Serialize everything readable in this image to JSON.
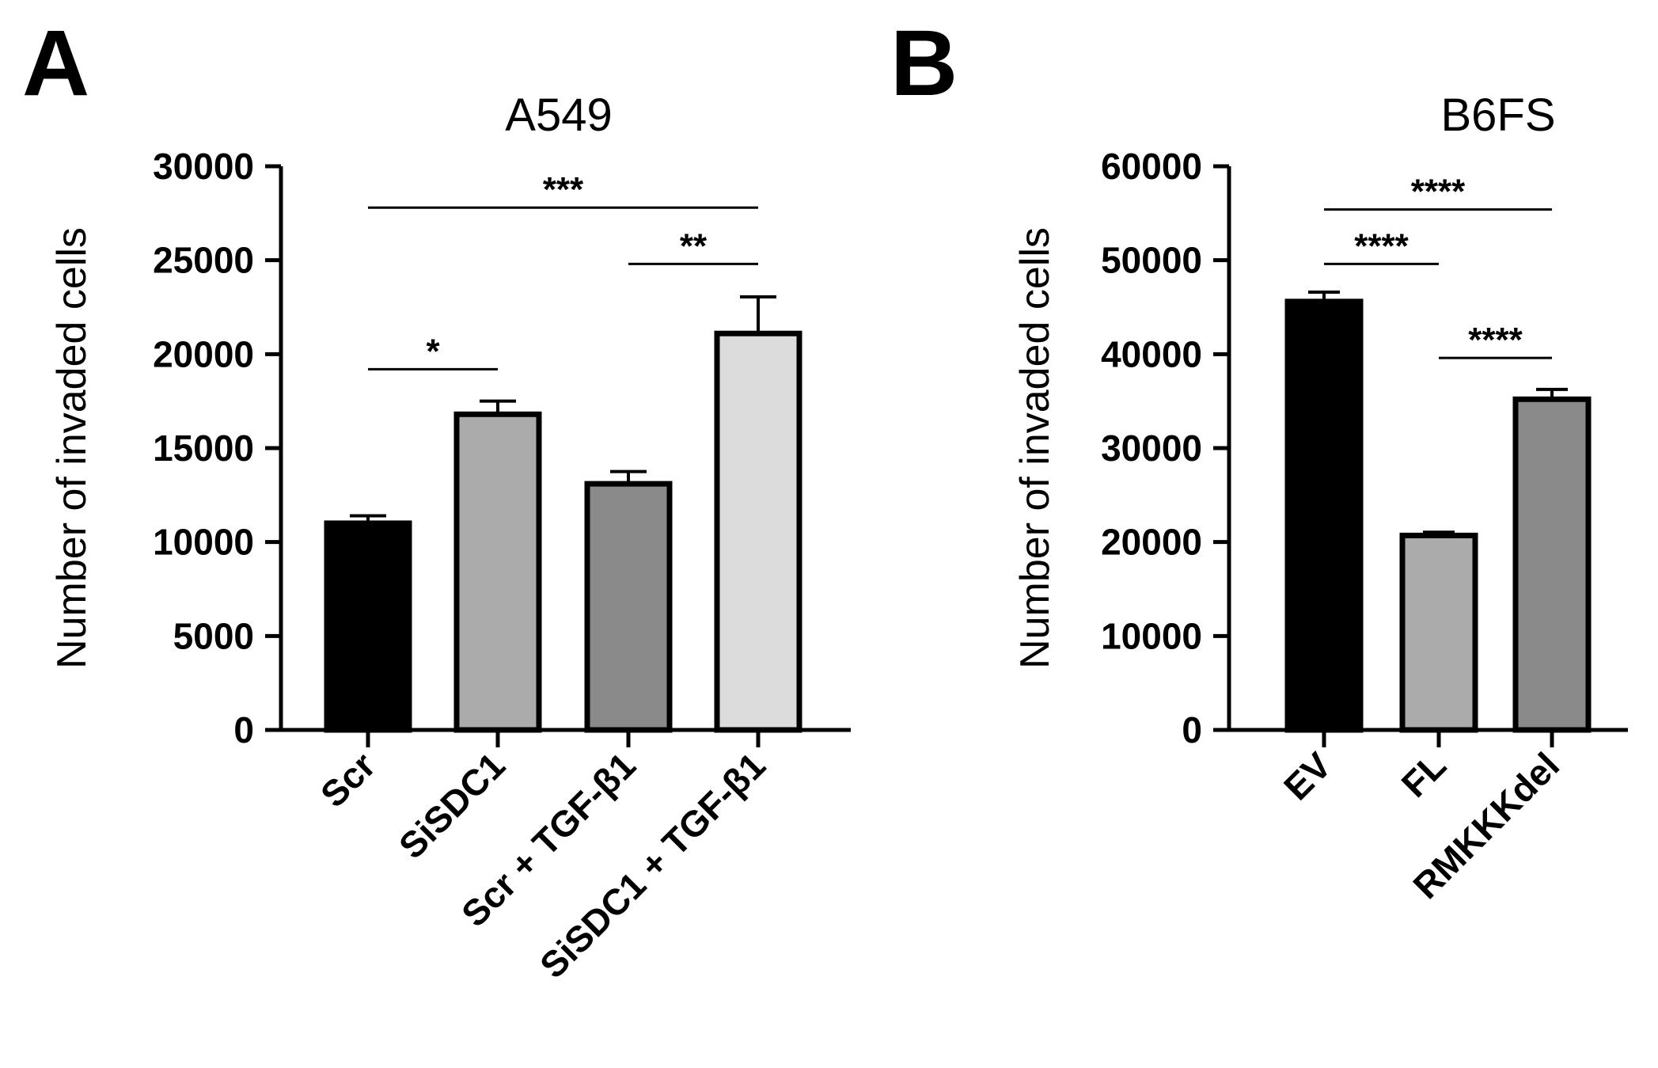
{
  "panels": [
    "A",
    "B"
  ],
  "chart_data": [
    {
      "panel": "A",
      "type": "bar",
      "title": "A549",
      "ylabel": "Number of invaded cells",
      "xlabel": "",
      "ylim": [
        0,
        30000
      ],
      "yticks": [
        0,
        5000,
        10000,
        15000,
        20000,
        25000,
        30000
      ],
      "categories": [
        "Scr",
        "SiSDC1",
        "Scr + TGF-β1",
        "SiSDC1 + TGF-β1"
      ],
      "values": [
        11000,
        16800,
        13100,
        21100
      ],
      "errors": [
        400,
        700,
        650,
        1950
      ],
      "bar_colors": [
        "#000000",
        "#ababab",
        "#8a8a8a",
        "#dcdcdc"
      ],
      "significance": [
        {
          "from": 0,
          "to": 1,
          "y": 19200,
          "label": "*"
        },
        {
          "from": 2,
          "to": 3,
          "y": 24800,
          "label": "**"
        },
        {
          "from": 0,
          "to": 3,
          "y": 27800,
          "label": "***"
        }
      ],
      "grid": false,
      "legend": "none"
    },
    {
      "panel": "B",
      "type": "bar",
      "title": "B6FS",
      "ylabel": "Number of invaded cells",
      "xlabel": "",
      "ylim": [
        0,
        60000
      ],
      "yticks": [
        0,
        10000,
        20000,
        30000,
        40000,
        50000,
        60000
      ],
      "categories": [
        "EV",
        "FL",
        "RMKKKdel"
      ],
      "values": [
        45600,
        20700,
        35200
      ],
      "errors": [
        1000,
        350,
        1050
      ],
      "bar_colors": [
        "#000000",
        "#ababab",
        "#8a8a8a"
      ],
      "significance": [
        {
          "from": 0,
          "to": 1,
          "y": 49600,
          "label": "****"
        },
        {
          "from": 1,
          "to": 2,
          "y": 39600,
          "label": "****"
        },
        {
          "from": 0,
          "to": 2,
          "y": 55400,
          "label": "****"
        }
      ],
      "grid": false,
      "legend": "none"
    }
  ]
}
